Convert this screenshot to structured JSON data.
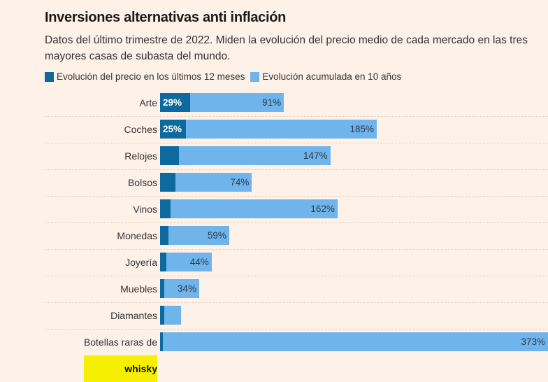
{
  "header": {
    "title": "Inversiones alternativas anti inflación",
    "subtitle": "Datos del último trimestre de 2022. Miden la evolución del precio medio de cada mercado en las tres mayores casas de subasta del mundo."
  },
  "chart_data": {
    "type": "bar",
    "stacked": true,
    "orientation": "horizontal",
    "title": "Inversiones alternativas anti inflación",
    "legend": [
      "Evolución del precio en los últimos 12 meses",
      "Evolución acumulada en 10 años"
    ],
    "legend_position": "top-left",
    "colors": {
      "12m": "#0d6a9e",
      "10y": "#70b4ec"
    },
    "categories": [
      "Arte",
      "Coches",
      "Relojes",
      "Bolsos",
      "Vinos",
      "Monedas",
      "Joyería",
      "Muebles",
      "Diamantes",
      "Botellas raras de whisky"
    ],
    "highlight": {
      "prefix": "Botellas raras de ",
      "word": "whisky"
    },
    "series": [
      {
        "name": "Evolución del precio en los últimos 12 meses",
        "values": [
          29,
          25,
          18,
          15,
          10,
          8,
          6,
          4,
          4,
          3
        ],
        "labels": [
          "29%",
          "25%",
          "",
          "",
          "",
          "",
          "",
          "",
          "",
          ""
        ]
      },
      {
        "name": "Evolución acumulada en 10 años",
        "values": [
          91,
          185,
          147,
          74,
          162,
          59,
          44,
          34,
          16,
          373
        ],
        "labels": [
          "91%",
          "185%",
          "147%",
          "74%",
          "162%",
          "59%",
          "44%",
          "34%",
          "",
          "373%"
        ]
      }
    ],
    "xlim": [
      0,
      376
    ]
  }
}
